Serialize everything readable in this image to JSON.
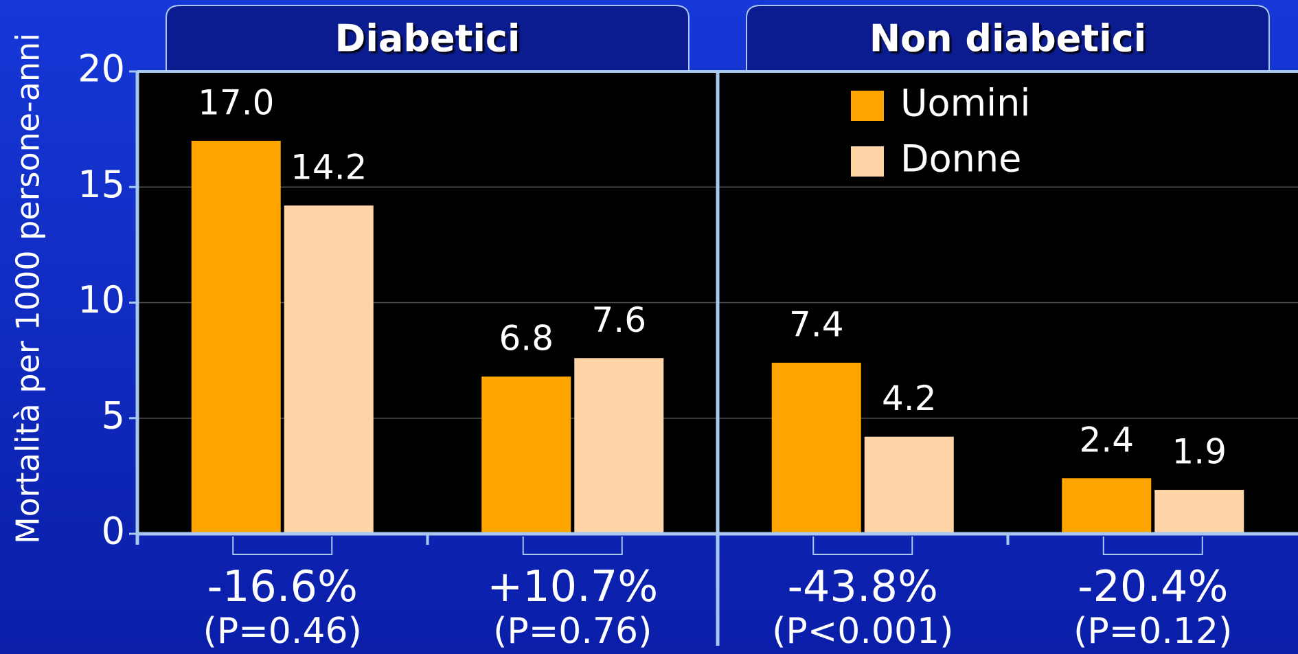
{
  "chart_data": {
    "type": "bar",
    "ylabel": "Mortalità per 1000 persone-anni",
    "panels": [
      {
        "title": "Diabetici"
      },
      {
        "title": "Non diabetici"
      }
    ],
    "categories": [
      null,
      null,
      null,
      null
    ],
    "series": [
      {
        "name": "Uomini",
        "color": "#ffa500",
        "values": [
          17.0,
          6.8,
          7.4,
          2.4
        ],
        "value_labels": [
          "17.0",
          "6.8",
          "7.4",
          "2.4"
        ]
      },
      {
        "name": "Donne",
        "color": "#ffd5a8",
        "values": [
          14.2,
          7.6,
          4.2,
          1.9
        ],
        "value_labels": [
          "14.2",
          "7.6",
          "4.2",
          "1.9"
        ]
      }
    ],
    "annotations": [
      {
        "change": "-16.6%",
        "p": "(P=0.46)"
      },
      {
        "change": "+10.7%",
        "p": "(P=0.76)"
      },
      {
        "change": "-43.8%",
        "p": "(P<0.001)"
      },
      {
        "change": "-20.4%",
        "p": "(P=0.12)"
      }
    ],
    "ylim": [
      0,
      20
    ],
    "yticks": [
      0,
      5,
      10,
      15,
      20
    ],
    "grid": true,
    "legend": "top-right"
  }
}
